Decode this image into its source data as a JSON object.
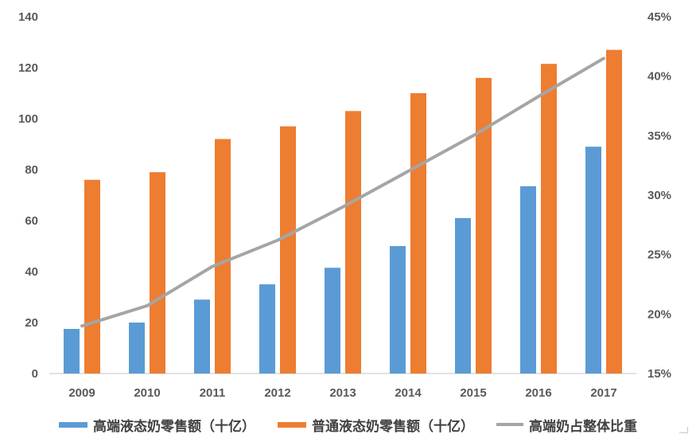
{
  "chart_data": {
    "type": "bar+line combo",
    "categories": [
      "2009",
      "2010",
      "2011",
      "2012",
      "2013",
      "2014",
      "2015",
      "2016",
      "2017"
    ],
    "series": [
      {
        "key": "premium",
        "name": "高端液态奶零售额（十亿）",
        "type": "bar",
        "axis": "left",
        "color": "#5B9BD5",
        "values": [
          17.5,
          20,
          29,
          35,
          41.5,
          50,
          61,
          73.5,
          89
        ]
      },
      {
        "key": "regular",
        "name": "普通液态奶零售额（十亿）",
        "type": "bar",
        "axis": "left",
        "color": "#ED7D31",
        "values": [
          76,
          79,
          92,
          97,
          103,
          110,
          116,
          121.5,
          127
        ]
      },
      {
        "key": "share",
        "name": "高端奶占整体比重",
        "type": "line",
        "axis": "right",
        "unit": "%",
        "color": "#A5A5A5",
        "values": [
          19,
          20.7,
          24,
          26.2,
          29,
          32,
          35,
          38.3,
          41.5
        ]
      }
    ],
    "y_axis_left": {
      "min": 0,
      "max": 140,
      "ticks": [
        "0",
        "20",
        "40",
        "60",
        "80",
        "100",
        "120",
        "140"
      ]
    },
    "y_axis_right": {
      "min": 15,
      "max": 45,
      "ticks": [
        "15%",
        "20%",
        "25%",
        "30%",
        "35%",
        "40%",
        "45%"
      ]
    },
    "title": "",
    "xlabel": "",
    "ylabel_left": "",
    "ylabel_right": "",
    "grid": false,
    "legend_position": "bottom"
  },
  "colors": {
    "axis_text": "#595959",
    "axis_line": "#D9D9D9",
    "background": "#FFFFFF"
  }
}
